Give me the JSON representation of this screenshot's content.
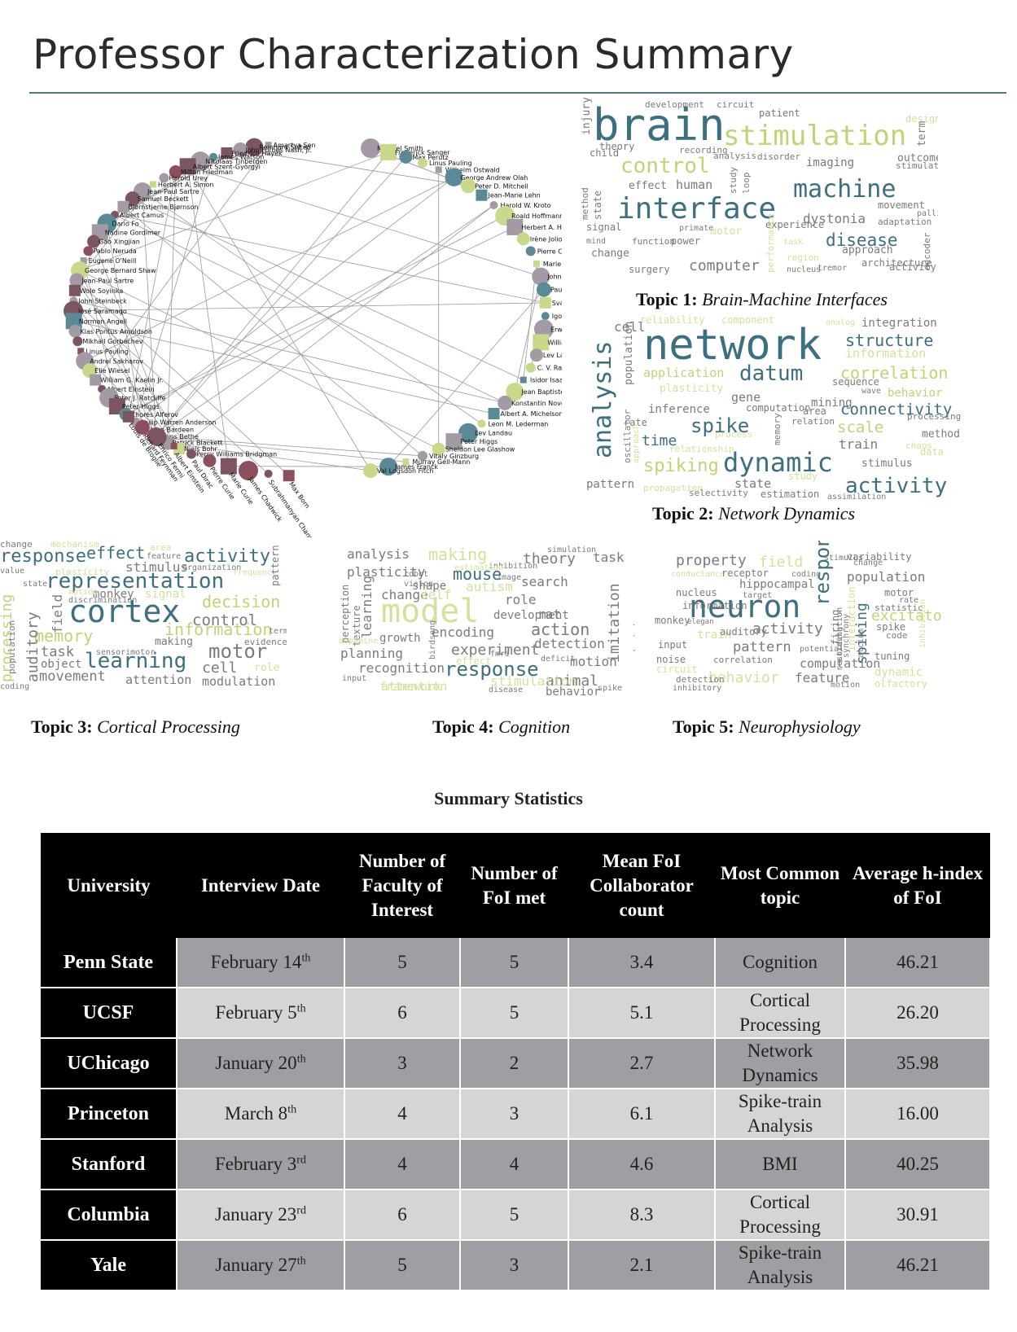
{
  "title": "Professor Characterization Summary",
  "network": {
    "left_names": [
      "Amartya Sen",
      "Reinhard Selten",
      "John Forbes Nash, Jr.",
      "Friedrich Hayek",
      "James Watson",
      "Nikolaas Tinbergen",
      "Albert Szent-Györgyi",
      "Milton Friedman",
      "Harold Urey",
      "Herbert A. Simon",
      "Jean-Paul Sartre",
      "Samuel Beckett",
      "Bjørnstjerne Bjørnson",
      "Albert Camus",
      "Dario Fo",
      "Nadine Gordimer",
      "Gao Xingjian",
      "Pablo Neruda",
      "Eugene O'Neill",
      "George Bernard Shaw",
      "Jean-Paul Sartre",
      "Wole Soyinka",
      "John Steinbeck",
      "José Saramago",
      "Norman Angell",
      "Klas Pontus Arnoldson",
      "Mikhail Gorbachev",
      "Linus Pauling",
      "Andrei Sakharov",
      "Elie Wiesel",
      "William G. Kaelin Jr.",
      "Albert Einstein",
      "Peter J. Ratcliffe",
      "Peter Higgs",
      "Zhores Alferov",
      "Philip Warren Anderson",
      "John Bardeen",
      "Hans Bethe",
      "Patrick Blackett",
      "Niels Bohr",
      "Percy Williams Bridgman"
    ],
    "right_names": [
      "Michael Smith",
      "Frederick Sanger",
      "Max Perutz",
      "Linus Pauling",
      "Wilhelm Ostwald",
      "George Andrew Olah",
      "Peter D. Mitchell",
      "Jean-Marie Lehn",
      "Harold W. Kroto",
      "Roald Hoffmann",
      "Herbert A. Hauptman",
      "Irène Joliot-Curie",
      "Pierre Curie",
      "Marie Curie",
      "John Cornforth",
      "Paul D. Boyer",
      "Svante Arrhenius",
      "Igor Tamm",
      "Erwin Schrödinger",
      "William Shockley",
      "Lev Landau",
      "C. V. Raman",
      "Isidor Isaac Rabi",
      "Jean Baptiste Perrin",
      "Konstantin Novoselov",
      "Albert A. Michelson",
      "Leon M. Lederman",
      "Lev Landau",
      "Peter Higgs",
      "Sheldon Lee Glashow",
      "Vitaly Ginzburg",
      "Murray Gell-Mann",
      "James Franck",
      "Val Logsdon Fitch"
    ],
    "bottom_names": [
      "Max Born",
      "Subrahmanyan Chandrasekhar",
      "James Chadwick",
      "Marie Curie",
      "Pierre Curie",
      "Paul Dirac",
      "Albert Einstein",
      "Enrico Fermi",
      "Richard Feynman",
      "Louis de Broglie"
    ]
  },
  "clouds": {
    "topic1": {
      "words": [
        "brain",
        "stimulation",
        "interface",
        "control",
        "machine",
        "disease",
        "computer",
        "dystonia",
        "imaging",
        "patient",
        "development",
        "circuit",
        "design",
        "term",
        "injury",
        "theory",
        "child",
        "recording",
        "analysis",
        "disorder",
        "outcome",
        "stimulator",
        "effect",
        "human",
        "study",
        "loop",
        "state",
        "method",
        "movement",
        "pallidal",
        "adaptation",
        "signal",
        "primate",
        "experience",
        "motor",
        "mind",
        "function",
        "power",
        "task",
        "approach",
        "change",
        "performance",
        "architecture",
        "surgery",
        "region",
        "nucleus",
        "decoder",
        "activity",
        "tremor"
      ]
    },
    "topic2": {
      "words": [
        "network",
        "analysis",
        "dynamic",
        "datum",
        "activity",
        "spike",
        "spiking",
        "connectivity",
        "correlation",
        "structure",
        "information",
        "integration",
        "component",
        "reliability",
        "cell",
        "population",
        "application",
        "plasticity",
        "sequence",
        "behavior",
        "gene",
        "mining",
        "computation",
        "wave",
        "inference",
        "area",
        "relation",
        "processing",
        "scale",
        "method",
        "rate",
        "time",
        "process",
        "memory",
        "train",
        "chaos",
        "data",
        "relationship",
        "oscillator",
        "approach",
        "stimulus",
        "pattern",
        "propagation",
        "state",
        "selectivity",
        "estimation",
        "study",
        "assimilation",
        "analog"
      ]
    },
    "topic3": {
      "words": [
        "cortex",
        "representation",
        "learning",
        "memory",
        "activity",
        "response",
        "effect",
        "decision",
        "information",
        "motor",
        "control",
        "monkey",
        "signal",
        "stimulus",
        "auditory",
        "field",
        "processing",
        "population",
        "plasticity",
        "area",
        "feature",
        "organization",
        "frequency",
        "mechanism",
        "change",
        "pattern",
        "term",
        "making",
        "evidence",
        "task",
        "object",
        "sensorimotor",
        "movement",
        "attention",
        "modulation",
        "cell",
        "role",
        "discrimination",
        "motion",
        "coding",
        "state",
        "value"
      ]
    },
    "topic4": {
      "words": [
        "model",
        "response",
        "mouse",
        "making",
        "search",
        "theory",
        "task",
        "analysis",
        "plasticity",
        "change",
        "self",
        "autism",
        "role",
        "development",
        "rat",
        "action",
        "imitation",
        "decision",
        "encoding",
        "experiment",
        "detection",
        "planning",
        "growth",
        "recognition",
        "motion",
        "framework",
        "animal",
        "behavior",
        "attention",
        "stimulation",
        "effect",
        "disease",
        "perception",
        "texture",
        "learning",
        "shape",
        "vision",
        "robot",
        "image",
        "inhibition",
        "simulation",
        "estimation",
        "deficit",
        "input",
        "dopamine",
        "birdsong",
        "spike",
        "fmri",
        "datum"
      ]
    },
    "topic5": {
      "words": [
        "neuron",
        "response",
        "spiking",
        "activity",
        "pattern",
        "behavior",
        "property",
        "field",
        "hippocampal",
        "population",
        "variability",
        "change",
        "conductance",
        "receptor",
        "coding",
        "nucleus",
        "target",
        "information",
        "motor",
        "rate",
        "statistic",
        "excitatory",
        "spike",
        "code",
        "monkey",
        "elegan",
        "train",
        "auditory",
        "input",
        "noise",
        "correlation",
        "potential",
        "computation",
        "tuning",
        "circuit",
        "detection",
        "inhibitory",
        "feature",
        "motion",
        "dynamic",
        "olfactory",
        "firing",
        "interaction",
        "synchrony",
        "calcium",
        "inhibition",
        "stimulation",
        "stimulus",
        "recording"
      ]
    }
  },
  "captions": [
    {
      "bold": "Topic 1:",
      "italic": "Brain-Machine Interfaces"
    },
    {
      "bold": "Topic 2:",
      "italic": "Network Dynamics"
    },
    {
      "bold": "Topic 3:",
      "italic": "Cortical Processing"
    },
    {
      "bold": "Topic 4:",
      "italic": "Cognition"
    },
    {
      "bold": "Topic 5:",
      "italic": "Neurophysiology"
    }
  ],
  "stats_heading": "Summary Statistics",
  "table": {
    "headers": [
      "University",
      "Interview Date",
      "Number of Faculty of Interest",
      "Number of FoI met",
      "Mean FoI Collaborator count",
      "Most Common topic",
      "Average h-index of FoI"
    ],
    "rows": [
      {
        "university": "Penn State",
        "date": "February 14",
        "date_suffix": "th",
        "faculty": "5",
        "met": "5",
        "collab": "3.4",
        "topic": "Cognition",
        "hindex": "46.21"
      },
      {
        "university": "UCSF",
        "date": "February 5",
        "date_suffix": "th",
        "faculty": "6",
        "met": "5",
        "collab": "5.1",
        "topic": "Cortical Processing",
        "hindex": "26.20"
      },
      {
        "university": "UChicago",
        "date": "January 20",
        "date_suffix": "th",
        "faculty": "3",
        "met": "2",
        "collab": "2.7",
        "topic": "Network Dynamics",
        "hindex": "35.98"
      },
      {
        "university": "Princeton",
        "date": "March 8",
        "date_suffix": "th",
        "faculty": "4",
        "met": "3",
        "collab": "6.1",
        "topic": "Spike-train Analysis",
        "hindex": "16.00"
      },
      {
        "university": "Stanford",
        "date": "February 3",
        "date_suffix": "rd",
        "faculty": "4",
        "met": "4",
        "collab": "4.6",
        "topic": "BMI",
        "hindex": "40.25"
      },
      {
        "university": "Columbia",
        "date": "January 23",
        "date_suffix": "rd",
        "faculty": "6",
        "met": "5",
        "collab": "8.3",
        "topic": "Cortical Processing",
        "hindex": "30.91"
      },
      {
        "university": "Yale",
        "date": "January 27",
        "date_suffix": "th",
        "faculty": "5",
        "met": "3",
        "collab": "2.1",
        "topic": "Spike-train Analysis",
        "hindex": "46.21"
      }
    ]
  }
}
